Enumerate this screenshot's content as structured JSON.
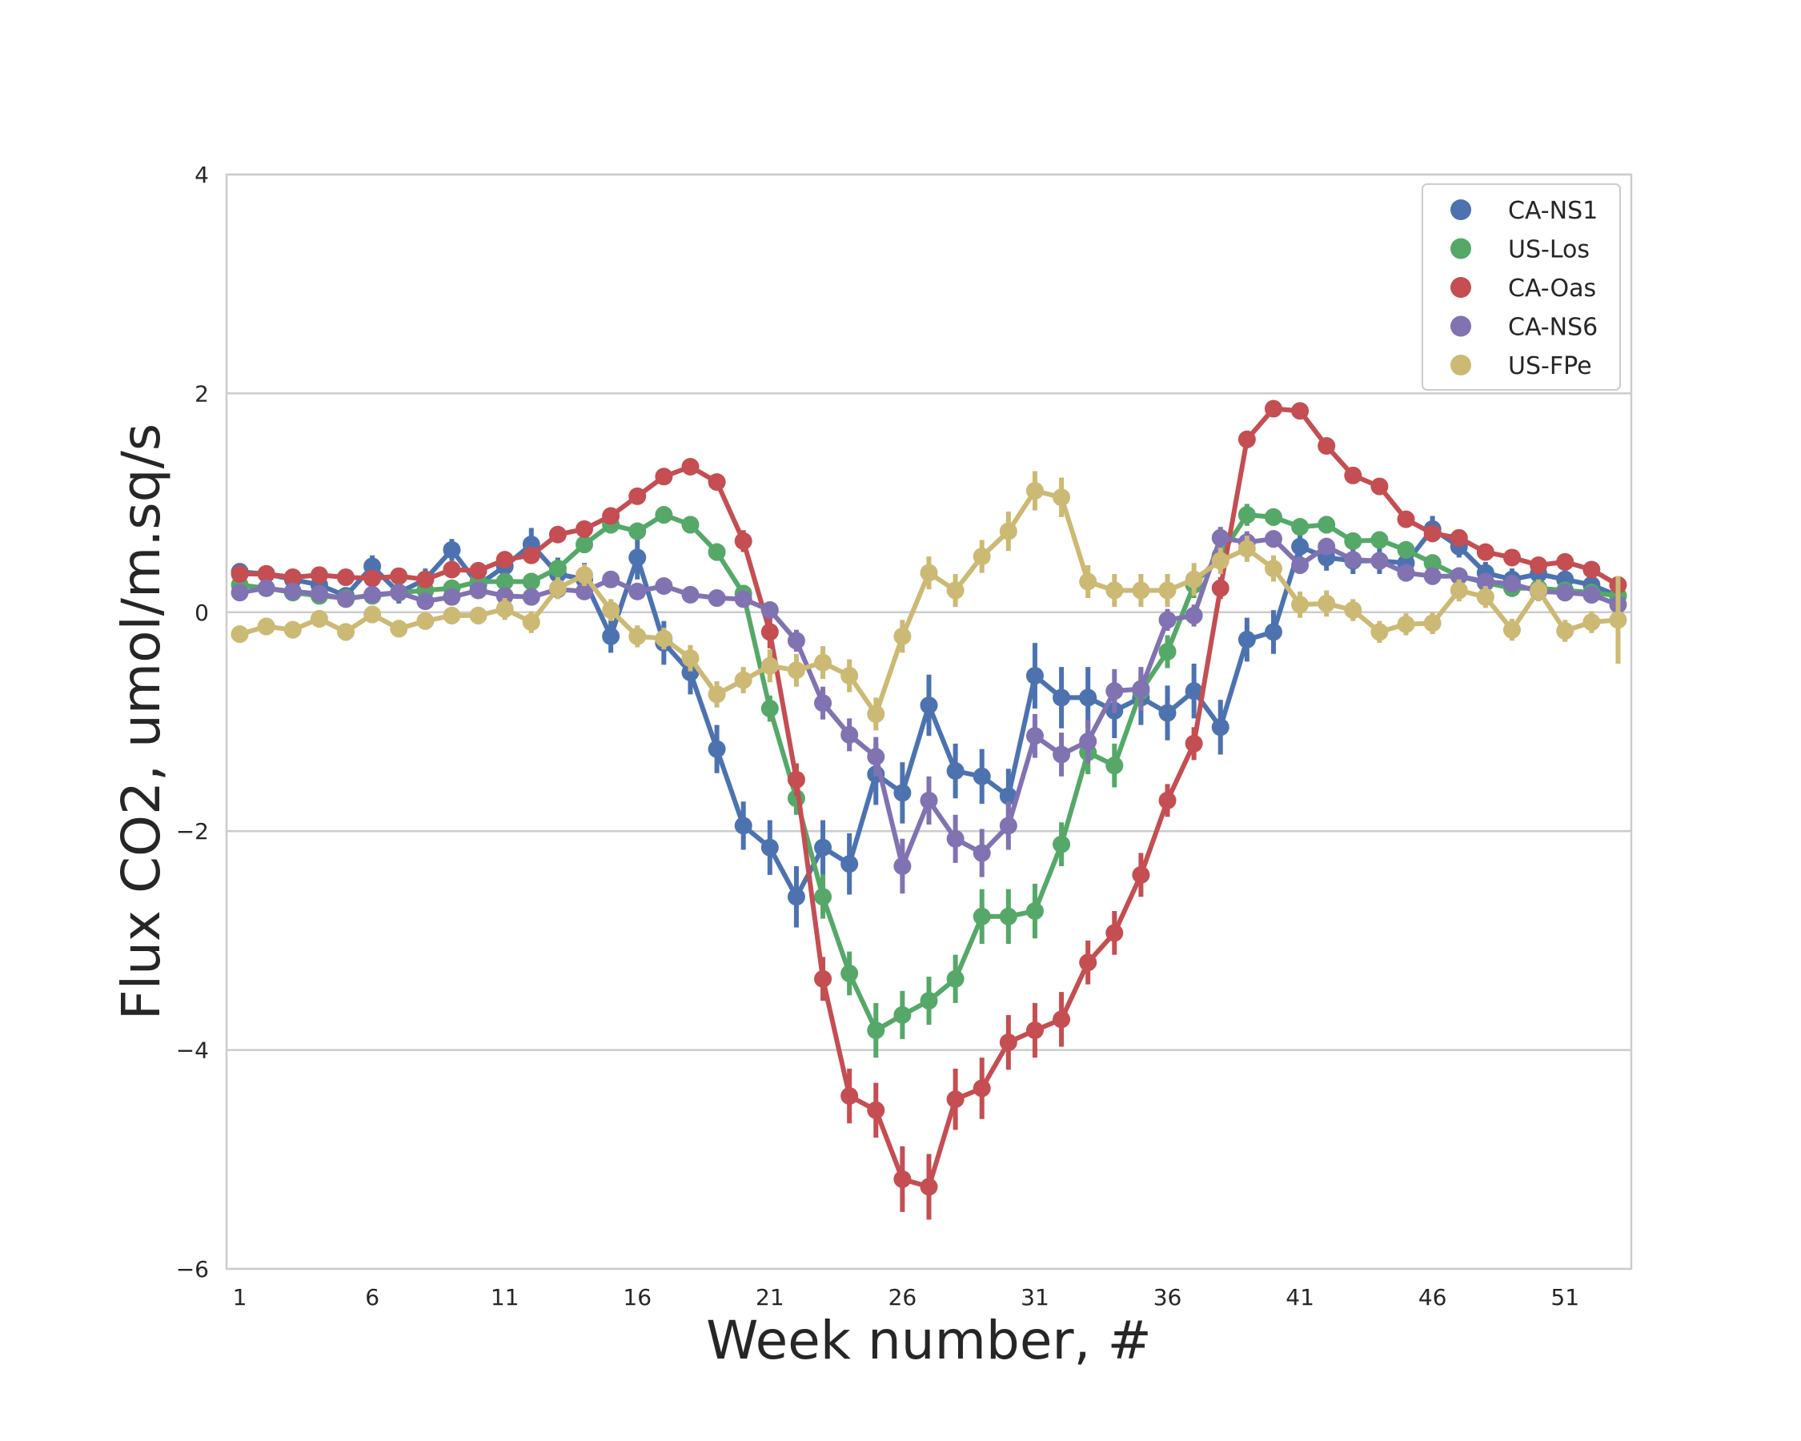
{
  "chart_data": {
    "type": "line",
    "xlabel": "Week number, #",
    "ylabel": "Flux CO2, umol/m.sq/s",
    "xlim": [
      0.5,
      53.5
    ],
    "ylim": [
      -6,
      4
    ],
    "xticks": [
      1,
      6,
      11,
      16,
      21,
      26,
      31,
      36,
      41,
      46,
      51
    ],
    "yticks": [
      -6,
      -4,
      -2,
      0,
      2,
      4
    ],
    "grid": "horizontal",
    "legend_position": "top-right",
    "x": [
      1,
      2,
      3,
      4,
      5,
      6,
      7,
      8,
      9,
      10,
      11,
      12,
      13,
      14,
      15,
      16,
      17,
      18,
      19,
      20,
      21,
      22,
      23,
      24,
      25,
      26,
      27,
      28,
      29,
      30,
      31,
      32,
      33,
      34,
      35,
      36,
      37,
      38,
      39,
      40,
      41,
      42,
      43,
      44,
      45,
      46,
      47,
      48,
      49,
      50,
      51,
      52,
      53
    ],
    "series": [
      {
        "name": "CA-NS1",
        "color": "#4c72b0",
        "values": [
          0.37,
          0.35,
          0.3,
          0.25,
          0.15,
          0.42,
          0.18,
          0.3,
          0.57,
          0.25,
          0.42,
          0.62,
          0.35,
          0.3,
          -0.22,
          0.5,
          -0.28,
          -0.55,
          -1.25,
          -1.95,
          -2.15,
          -2.6,
          -2.15,
          -2.3,
          -1.48,
          -1.65,
          -0.85,
          -1.45,
          -1.5,
          -1.68,
          -0.58,
          -0.78,
          -0.78,
          -0.9,
          -0.78,
          -0.92,
          -0.72,
          -1.05,
          -0.25,
          -0.18,
          0.6,
          0.5,
          0.47,
          0.47,
          0.45,
          0.76,
          0.6,
          0.36,
          0.3,
          0.35,
          0.3,
          0.25,
          0.15
        ],
        "errors": [
          0.08,
          0.08,
          0.08,
          0.08,
          0.08,
          0.1,
          0.1,
          0.1,
          0.1,
          0.1,
          0.1,
          0.15,
          0.15,
          0.15,
          0.15,
          0.2,
          0.2,
          0.2,
          0.22,
          0.22,
          0.25,
          0.28,
          0.25,
          0.28,
          0.28,
          0.28,
          0.28,
          0.25,
          0.25,
          0.25,
          0.3,
          0.28,
          0.28,
          0.25,
          0.25,
          0.25,
          0.25,
          0.25,
          0.2,
          0.2,
          0.15,
          0.12,
          0.12,
          0.12,
          0.12,
          0.12,
          0.1,
          0.1,
          0.1,
          0.1,
          0.1,
          0.1,
          0.1
        ]
      },
      {
        "name": "US-Los",
        "color": "#55a868",
        "values": [
          0.25,
          0.22,
          0.18,
          0.15,
          0.13,
          0.15,
          0.18,
          0.2,
          0.22,
          0.28,
          0.28,
          0.28,
          0.4,
          0.62,
          0.8,
          0.74,
          0.89,
          0.8,
          0.55,
          0.17,
          -0.88,
          -1.7,
          -2.6,
          -3.3,
          -3.82,
          -3.68,
          -3.55,
          -3.35,
          -2.78,
          -2.78,
          -2.73,
          -2.12,
          -1.28,
          -1.4,
          -0.72,
          -0.36,
          0.25,
          0.52,
          0.89,
          0.87,
          0.78,
          0.8,
          0.65,
          0.66,
          0.57,
          0.45,
          0.33,
          0.27,
          0.22,
          0.22,
          0.2,
          0.18,
          0.15
        ],
        "errors": [
          0.06,
          0.06,
          0.06,
          0.06,
          0.06,
          0.06,
          0.06,
          0.06,
          0.06,
          0.06,
          0.06,
          0.08,
          0.08,
          0.08,
          0.08,
          0.08,
          0.08,
          0.08,
          0.08,
          0.08,
          0.12,
          0.15,
          0.2,
          0.2,
          0.25,
          0.22,
          0.22,
          0.22,
          0.25,
          0.25,
          0.25,
          0.2,
          0.2,
          0.2,
          0.18,
          0.15,
          0.12,
          0.12,
          0.1,
          0.08,
          0.08,
          0.08,
          0.08,
          0.08,
          0.08,
          0.08,
          0.08,
          0.08,
          0.08,
          0.08,
          0.08,
          0.08,
          0.08
        ]
      },
      {
        "name": "CA-Oas",
        "color": "#c44e52",
        "values": [
          0.35,
          0.35,
          0.32,
          0.34,
          0.32,
          0.31,
          0.33,
          0.3,
          0.39,
          0.38,
          0.48,
          0.52,
          0.71,
          0.76,
          0.88,
          1.06,
          1.24,
          1.33,
          1.19,
          0.65,
          -0.18,
          -1.53,
          -3.35,
          -4.42,
          -4.55,
          -5.18,
          -5.25,
          -4.45,
          -4.35,
          -3.93,
          -3.82,
          -3.72,
          -3.2,
          -2.93,
          -2.4,
          -1.72,
          -1.2,
          0.22,
          1.58,
          1.86,
          1.84,
          1.52,
          1.25,
          1.15,
          0.85,
          0.72,
          0.68,
          0.55,
          0.5,
          0.43,
          0.46,
          0.39,
          0.25
        ],
        "errors": [
          0.05,
          0.05,
          0.05,
          0.05,
          0.05,
          0.05,
          0.05,
          0.05,
          0.05,
          0.05,
          0.05,
          0.05,
          0.05,
          0.05,
          0.05,
          0.05,
          0.05,
          0.05,
          0.05,
          0.1,
          0.15,
          0.15,
          0.2,
          0.25,
          0.25,
          0.3,
          0.3,
          0.28,
          0.28,
          0.25,
          0.25,
          0.25,
          0.2,
          0.2,
          0.2,
          0.15,
          0.15,
          0.1,
          0.08,
          0.06,
          0.06,
          0.06,
          0.06,
          0.06,
          0.06,
          0.06,
          0.06,
          0.06,
          0.05,
          0.05,
          0.05,
          0.05,
          0.05
        ]
      },
      {
        "name": "CA-NS6",
        "color": "#8172b2",
        "values": [
          0.18,
          0.22,
          0.19,
          0.17,
          0.12,
          0.16,
          0.18,
          0.1,
          0.14,
          0.2,
          0.15,
          0.14,
          0.21,
          0.19,
          0.3,
          0.19,
          0.24,
          0.16,
          0.13,
          0.12,
          0.02,
          -0.26,
          -0.83,
          -1.12,
          -1.32,
          -2.32,
          -1.72,
          -2.07,
          -2.2,
          -1.95,
          -1.13,
          -1.3,
          -1.18,
          -0.72,
          -0.7,
          -0.07,
          -0.03,
          0.68,
          0.64,
          0.67,
          0.43,
          0.6,
          0.48,
          0.47,
          0.36,
          0.33,
          0.33,
          0.28,
          0.26,
          0.19,
          0.18,
          0.16,
          0.07
        ],
        "errors": [
          0.06,
          0.06,
          0.06,
          0.06,
          0.06,
          0.06,
          0.06,
          0.06,
          0.06,
          0.06,
          0.06,
          0.06,
          0.06,
          0.06,
          0.06,
          0.06,
          0.06,
          0.06,
          0.06,
          0.06,
          0.08,
          0.1,
          0.15,
          0.15,
          0.18,
          0.25,
          0.22,
          0.22,
          0.22,
          0.22,
          0.2,
          0.2,
          0.2,
          0.2,
          0.2,
          0.1,
          0.1,
          0.1,
          0.1,
          0.08,
          0.08,
          0.08,
          0.08,
          0.08,
          0.08,
          0.08,
          0.08,
          0.08,
          0.08,
          0.08,
          0.08,
          0.08,
          0.08
        ]
      },
      {
        "name": "US-FPe",
        "color": "#ccb974",
        "values": [
          -0.2,
          -0.13,
          -0.16,
          -0.06,
          -0.18,
          -0.02,
          -0.15,
          -0.08,
          -0.03,
          -0.03,
          0.03,
          -0.09,
          0.22,
          0.34,
          0.02,
          -0.22,
          -0.24,
          -0.42,
          -0.75,
          -0.62,
          -0.49,
          -0.53,
          -0.46,
          -0.58,
          -0.93,
          -0.22,
          0.36,
          0.2,
          0.51,
          0.74,
          1.11,
          1.05,
          0.28,
          0.2,
          0.2,
          0.2,
          0.3,
          0.47,
          0.58,
          0.4,
          0.07,
          0.08,
          0.02,
          -0.18,
          -0.11,
          -0.1,
          0.2,
          0.14,
          -0.16,
          0.2,
          -0.17,
          -0.09,
          -0.07
        ],
        "errors": [
          0.08,
          0.08,
          0.08,
          0.08,
          0.08,
          0.08,
          0.08,
          0.08,
          0.08,
          0.08,
          0.1,
          0.1,
          0.1,
          0.1,
          0.1,
          0.1,
          0.1,
          0.12,
          0.12,
          0.12,
          0.15,
          0.15,
          0.15,
          0.15,
          0.15,
          0.15,
          0.15,
          0.15,
          0.15,
          0.18,
          0.18,
          0.18,
          0.15,
          0.15,
          0.15,
          0.15,
          0.15,
          0.12,
          0.12,
          0.12,
          0.12,
          0.12,
          0.1,
          0.1,
          0.1,
          0.1,
          0.1,
          0.1,
          0.1,
          0.1,
          0.1,
          0.1,
          0.4
        ]
      }
    ]
  }
}
